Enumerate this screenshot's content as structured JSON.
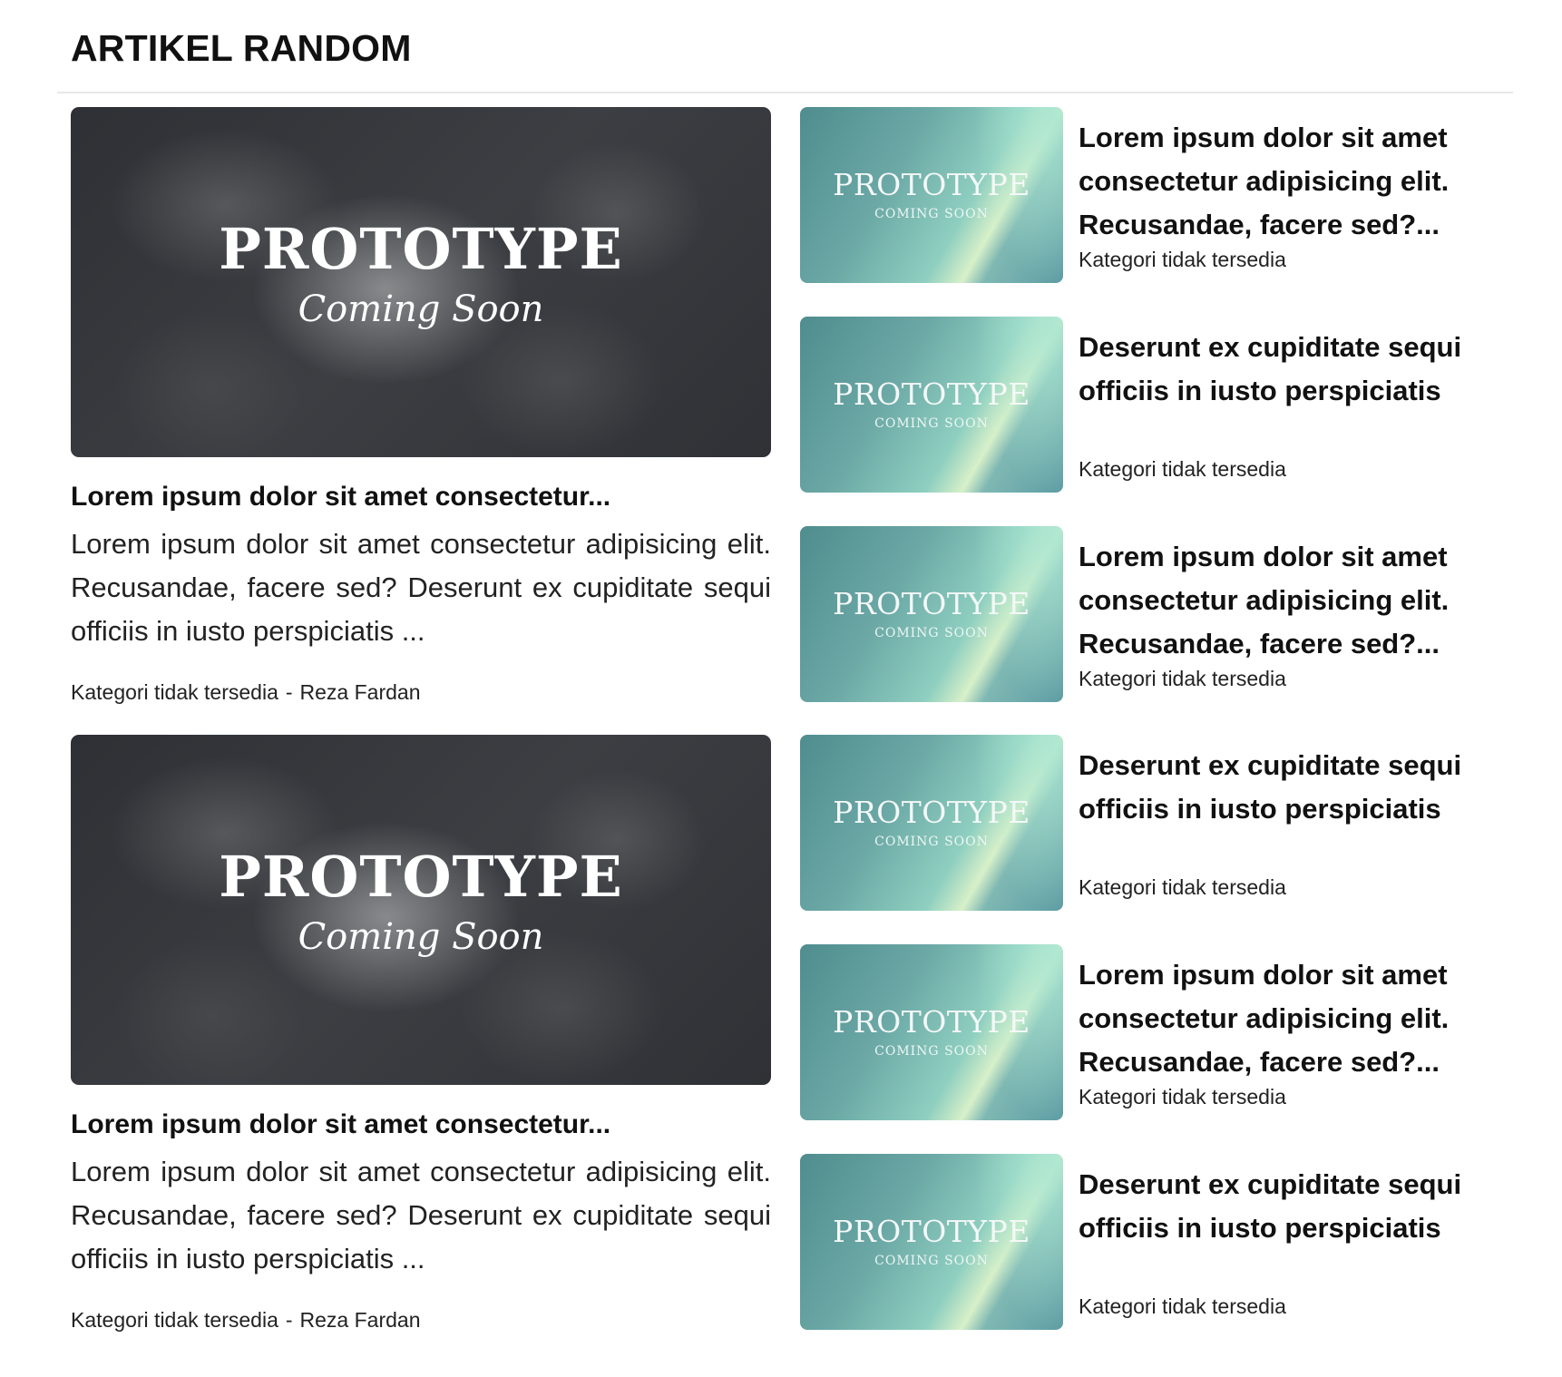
{
  "section": {
    "title": "ARTIKEL RANDOM"
  },
  "featured": [
    {
      "thumb": {
        "line1": "PROTOTYPE",
        "line2": "Coming Soon"
      },
      "title": "Lorem ipsum dolor sit amet consectetur...",
      "excerpt": "Lorem ipsum dolor sit amet consectetur adipisicing elit. Recusandae, facere sed? Deserunt ex cupiditate sequi officiis in iusto perspiciatis ...",
      "category": "Kategori tidak tersedia",
      "separator": "-",
      "author": "Reza Fardan"
    },
    {
      "thumb": {
        "line1": "PROTOTYPE",
        "line2": "Coming Soon"
      },
      "title": "Lorem ipsum dolor sit amet consectetur...",
      "excerpt": "Lorem ipsum dolor sit amet consectetur adipisicing elit. Recusandae, facere sed? Deserunt ex cupiditate sequi officiis in iusto perspiciatis ...",
      "category": "Kategori tidak tersedia",
      "separator": "-",
      "author": "Reza Fardan"
    }
  ],
  "items": [
    {
      "thumb": {
        "line1": "PROTOTYPE",
        "line2": "COMING SOON"
      },
      "title": "Lorem ipsum dolor sit amet consectetur adipisicing elit. Recusandae, facere sed?...",
      "category": "Kategori tidak tersedia"
    },
    {
      "thumb": {
        "line1": "PROTOTYPE",
        "line2": "COMING SOON"
      },
      "title": "Deserunt ex cupiditate sequi officiis in iusto perspiciatis",
      "category": "Kategori tidak tersedia"
    },
    {
      "thumb": {
        "line1": "PROTOTYPE",
        "line2": "COMING SOON"
      },
      "title": "Lorem ipsum dolor sit amet consectetur adipisicing elit. Recusandae, facere sed?...",
      "category": "Kategori tidak tersedia"
    },
    {
      "thumb": {
        "line1": "PROTOTYPE",
        "line2": "COMING SOON"
      },
      "title": "Deserunt ex cupiditate sequi officiis in iusto perspiciatis",
      "category": "Kategori tidak tersedia"
    },
    {
      "thumb": {
        "line1": "PROTOTYPE",
        "line2": "COMING SOON"
      },
      "title": "Lorem ipsum dolor sit amet consectetur adipisicing elit. Recusandae, facere sed?...",
      "category": "Kategori tidak tersedia"
    },
    {
      "thumb": {
        "line1": "PROTOTYPE",
        "line2": "COMING SOON"
      },
      "title": "Deserunt ex cupiditate sequi officiis in iusto perspiciatis",
      "category": "Kategori tidak tersedia"
    }
  ]
}
